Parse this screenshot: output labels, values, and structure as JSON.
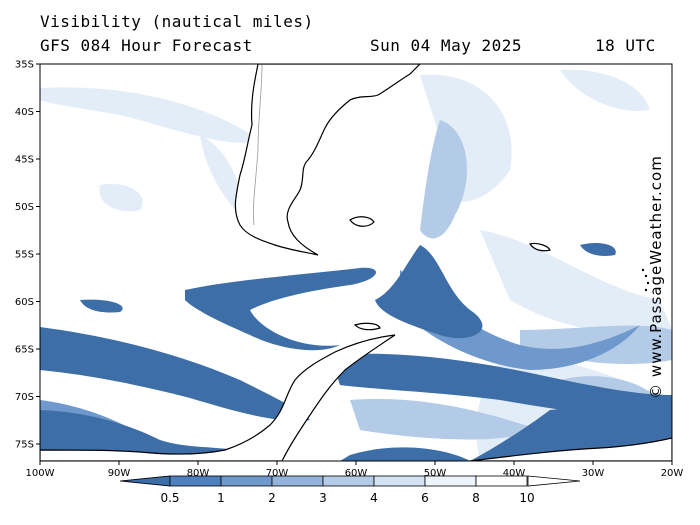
{
  "header": {
    "title": "Visibility (nautical miles)",
    "model": "GFS 084 Hour Forecast",
    "date": "Sun 04 May 2025",
    "time": "18 UTC"
  },
  "watermark": "© www.PassageWeather.com",
  "axes": {
    "lat_labels": [
      "35S",
      "40S",
      "45S",
      "50S",
      "55S",
      "60S",
      "65S",
      "70S",
      "75S"
    ],
    "lon_labels": [
      "100W",
      "90W",
      "80W",
      "70W",
      "60W",
      "50W",
      "40W",
      "30W",
      "20W"
    ]
  },
  "legend": {
    "labels": [
      "0.5",
      "1",
      "2",
      "3",
      "4",
      "6",
      "8",
      "10"
    ],
    "colors": [
      "#3b6da8",
      "#4e80bd",
      "#6f98cc",
      "#93b3db",
      "#b4cbe7",
      "#d3e2f2",
      "#eef4fb",
      "#ffffff"
    ]
  },
  "colors": {
    "fog_dark": "#3d6ea8",
    "fog_mid": "#6f98cc",
    "fog_light": "#b4cbe7",
    "fog_pale": "#dce8f5",
    "land": "#ffffff",
    "coast": "#000000"
  }
}
